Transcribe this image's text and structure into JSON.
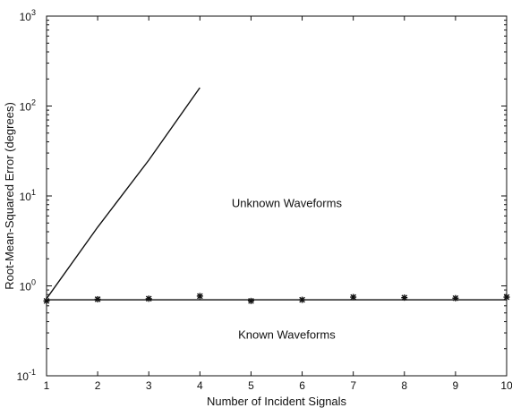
{
  "chart_data": {
    "type": "line",
    "title": "",
    "xlabel": "Number of Incident Signals",
    "ylabel": "Root-Mean-Squared Error (degrees)",
    "xlim": [
      1,
      10
    ],
    "ylim": [
      0.1,
      1000
    ],
    "yscale": "log",
    "grid": false,
    "x_ticks": [
      "1",
      "2",
      "3",
      "4",
      "5",
      "6",
      "7",
      "8",
      "9",
      "10"
    ],
    "y_ticks": [
      {
        "value": 0.1,
        "base": "10",
        "exp": "-1"
      },
      {
        "value": 1,
        "base": "10",
        "exp": "0"
      },
      {
        "value": 10,
        "base": "10",
        "exp": "1"
      },
      {
        "value": 100,
        "base": "10",
        "exp": "2"
      },
      {
        "value": 1000,
        "base": "10",
        "exp": "3"
      }
    ],
    "series": [
      {
        "name": "Unknown Waveforms",
        "style": "line",
        "x": [
          1,
          2,
          3,
          4
        ],
        "y": [
          0.72,
          4.5,
          25,
          160
        ]
      },
      {
        "name": "Known Waveforms",
        "style": "line",
        "x": [
          1,
          10
        ],
        "y": [
          0.7,
          0.7
        ]
      },
      {
        "name": "Known Waveforms",
        "style": "markers",
        "marker": "asterisk",
        "x": [
          1,
          2,
          3,
          4,
          5,
          6,
          7,
          8,
          9,
          10
        ],
        "y": [
          0.68,
          0.71,
          0.72,
          0.77,
          0.68,
          0.7,
          0.75,
          0.74,
          0.73,
          0.75
        ]
      }
    ],
    "annotations": [
      {
        "text": "Unknown Waveforms",
        "x": 5.7,
        "y": 7.5
      },
      {
        "text": "Known Waveforms",
        "x": 5.7,
        "y": 0.26
      }
    ]
  }
}
